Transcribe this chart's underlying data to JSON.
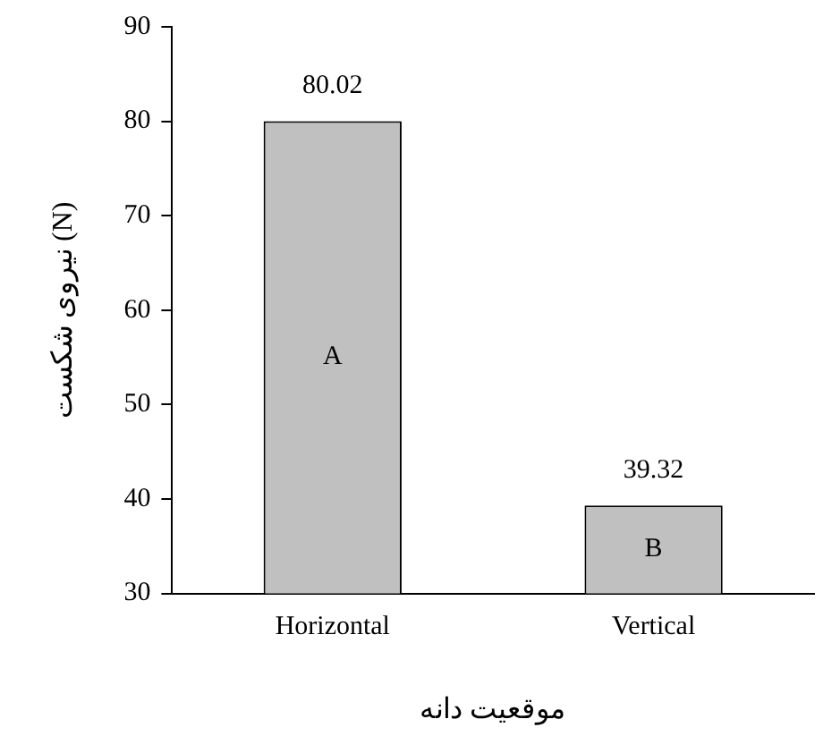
{
  "chart_data": {
    "type": "bar",
    "xlabel": "موقعیت دانه",
    "ylabel": "نیروی شکست (N)",
    "categories": [
      "Horizontal",
      "Vertical"
    ],
    "values": [
      80.02,
      39.32
    ],
    "color": "#c0c0c0",
    "ylim": [
      30,
      90
    ],
    "yticks": [
      30,
      40,
      50,
      60,
      70,
      80,
      90
    ],
    "data_labels": true,
    "grid": false,
    "legend": false,
    "annotations": [
      "A",
      "B"
    ]
  }
}
